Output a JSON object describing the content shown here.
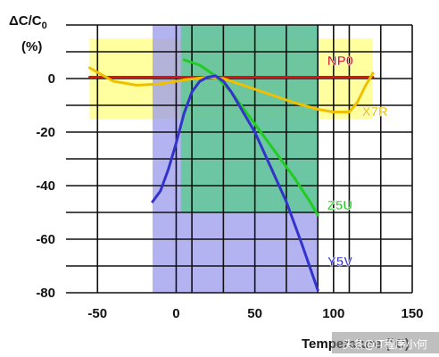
{
  "chart_data": {
    "type": "line",
    "ylabel_main": "ΔC/C",
    "ylabel_sub": "0",
    "ylabel_unit": "(%)",
    "xlabel": "Temperature (°C)",
    "x_ticks": [
      "-50",
      "0",
      "50",
      "100",
      "150"
    ],
    "x_tick_values": [
      -50,
      0,
      50,
      100,
      150
    ],
    "y_ticks": [
      "0",
      "-20",
      "-40",
      "-60",
      "-80"
    ],
    "y_tick_values": [
      0,
      -20,
      -40,
      -60,
      -80
    ],
    "xlim": [
      -70,
      150
    ],
    "ylim": [
      -80,
      20
    ],
    "grid": true,
    "regions": [
      {
        "name": "X7R band",
        "x": [
          -55,
          125
        ],
        "y": [
          -15,
          15
        ],
        "color": "#ffff80"
      },
      {
        "name": "Y5V range",
        "x": [
          -15,
          90
        ],
        "y": [
          -80,
          22
        ],
        "color": "#9999ee"
      },
      {
        "name": "Z5U range",
        "x": [
          3,
          90
        ],
        "y": [
          -50,
          22
        ],
        "color": "#55cc88"
      }
    ],
    "series": [
      {
        "name": "NP0",
        "color": "#dd1111",
        "x": [
          -55,
          125
        ],
        "y": [
          0.5,
          0.5
        ]
      },
      {
        "name": "X7R",
        "color": "#f0c000",
        "x": [
          -55,
          -40,
          -25,
          -10,
          5,
          20,
          30,
          45,
          60,
          75,
          90,
          100,
          110,
          115,
          120,
          125
        ],
        "y": [
          4,
          -1,
          -2.5,
          -2,
          -0.5,
          0.5,
          0,
          -3,
          -6,
          -9,
          -11.5,
          -12.5,
          -12.5,
          -9,
          -3,
          2
        ]
      },
      {
        "name": "Z5U",
        "color": "#22cc22",
        "x": [
          5,
          15,
          25,
          35,
          45,
          55,
          65,
          75,
          85,
          90
        ],
        "y": [
          7,
          5,
          1,
          -5,
          -13,
          -21,
          -29,
          -37,
          -46,
          -51
        ]
      },
      {
        "name": "Y5V",
        "color": "#3333cc",
        "x": [
          -15,
          -10,
          -5,
          0,
          5,
          10,
          15,
          20,
          25,
          30,
          35,
          40,
          50,
          60,
          70,
          80,
          90
        ],
        "y": [
          -46,
          -42,
          -34,
          -24,
          -13,
          -5,
          -1,
          0.5,
          1,
          -1,
          -5,
          -10,
          -20,
          -33,
          -46,
          -62,
          -79
        ]
      }
    ],
    "series_labels": [
      {
        "name": "NP0",
        "anchor_x": 96,
        "anchor_y": 5
      },
      {
        "name": "X7R",
        "anchor_x": 118,
        "anchor_y": -14
      },
      {
        "name": "Z5U",
        "anchor_x": 96,
        "anchor_y": -49
      },
      {
        "name": "Y5V",
        "anchor_x": 96,
        "anchor_y": -70
      }
    ]
  },
  "watermark": "头条@IT程序小何"
}
